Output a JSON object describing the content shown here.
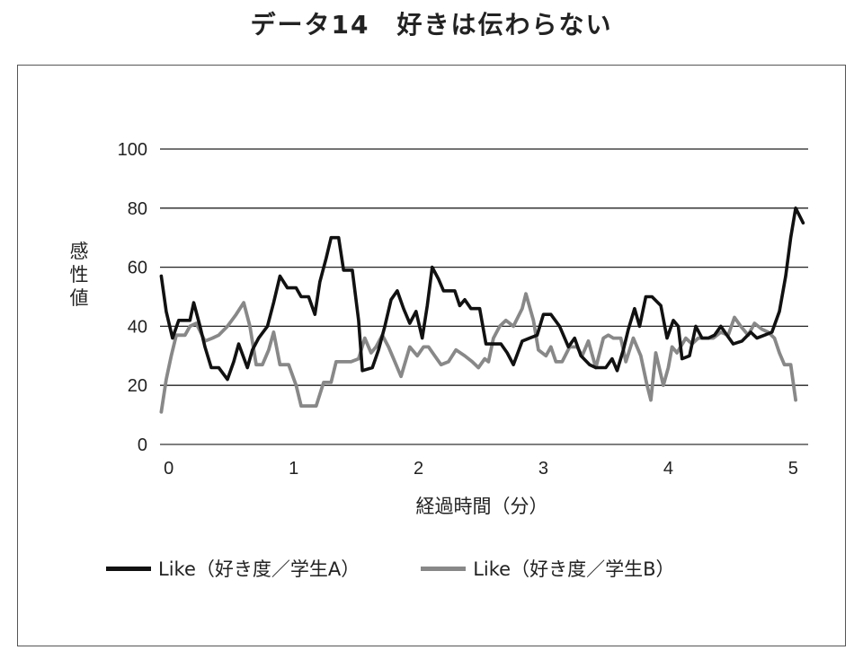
{
  "page_title": "データ14　好きは伝わらない",
  "chart_data": {
    "type": "line",
    "title": "データ14　好きは伝わらない",
    "xlabel": "経過時間（分）",
    "ylabel": "感性値",
    "xlim": [
      -0.07,
      5.12
    ],
    "ylim": [
      0,
      100
    ],
    "x_ticks": [
      0,
      1,
      2,
      3,
      4,
      5
    ],
    "y_ticks": [
      0,
      20,
      40,
      60,
      80,
      100
    ],
    "grid": "horizontal",
    "legend_position": "bottom",
    "series": [
      {
        "name": "Like（好き度／学生A）",
        "color": "#111111",
        "points": [
          [
            -0.06,
            57
          ],
          [
            -0.02,
            45
          ],
          [
            0.03,
            36
          ],
          [
            0.08,
            42
          ],
          [
            0.17,
            42
          ],
          [
            0.2,
            48
          ],
          [
            0.25,
            40
          ],
          [
            0.29,
            33
          ],
          [
            0.34,
            26
          ],
          [
            0.4,
            26
          ],
          [
            0.47,
            22
          ],
          [
            0.52,
            28
          ],
          [
            0.56,
            34
          ],
          [
            0.63,
            26
          ],
          [
            0.67,
            32
          ],
          [
            0.72,
            36
          ],
          [
            0.79,
            40
          ],
          [
            0.84,
            48
          ],
          [
            0.89,
            57
          ],
          [
            0.95,
            53
          ],
          [
            1.02,
            53
          ],
          [
            1.06,
            50
          ],
          [
            1.12,
            50
          ],
          [
            1.17,
            44
          ],
          [
            1.21,
            55
          ],
          [
            1.26,
            63
          ],
          [
            1.3,
            70
          ],
          [
            1.36,
            70
          ],
          [
            1.4,
            59
          ],
          [
            1.47,
            59
          ],
          [
            1.52,
            42
          ],
          [
            1.55,
            25
          ],
          [
            1.63,
            26
          ],
          [
            1.68,
            32
          ],
          [
            1.73,
            40
          ],
          [
            1.78,
            49
          ],
          [
            1.83,
            52
          ],
          [
            1.88,
            46
          ],
          [
            1.93,
            41
          ],
          [
            1.98,
            45
          ],
          [
            2.03,
            36
          ],
          [
            2.07,
            47
          ],
          [
            2.11,
            60
          ],
          [
            2.16,
            56
          ],
          [
            2.2,
            52
          ],
          [
            2.29,
            52
          ],
          [
            2.33,
            47
          ],
          [
            2.37,
            49
          ],
          [
            2.42,
            46
          ],
          [
            2.49,
            46
          ],
          [
            2.54,
            34
          ],
          [
            2.6,
            34
          ],
          [
            2.66,
            34
          ],
          [
            2.71,
            31
          ],
          [
            2.76,
            27
          ],
          [
            2.83,
            35
          ],
          [
            2.89,
            36
          ],
          [
            2.95,
            37
          ],
          [
            3.0,
            44
          ],
          [
            3.06,
            44
          ],
          [
            3.13,
            40
          ],
          [
            3.2,
            33
          ],
          [
            3.25,
            36
          ],
          [
            3.3,
            30
          ],
          [
            3.37,
            27
          ],
          [
            3.42,
            26
          ],
          [
            3.5,
            26
          ],
          [
            3.55,
            29
          ],
          [
            3.59,
            25
          ],
          [
            3.64,
            32
          ],
          [
            3.68,
            39
          ],
          [
            3.73,
            46
          ],
          [
            3.77,
            40
          ],
          [
            3.82,
            50
          ],
          [
            3.87,
            50
          ],
          [
            3.94,
            47
          ],
          [
            3.99,
            36
          ],
          [
            4.04,
            42
          ],
          [
            4.08,
            40
          ],
          [
            4.11,
            29
          ],
          [
            4.17,
            30
          ],
          [
            4.22,
            40
          ],
          [
            4.27,
            36
          ],
          [
            4.32,
            36
          ],
          [
            4.37,
            37
          ],
          [
            4.42,
            40
          ],
          [
            4.47,
            37
          ],
          [
            4.52,
            34
          ],
          [
            4.59,
            35
          ],
          [
            4.66,
            38
          ],
          [
            4.71,
            36
          ],
          [
            4.77,
            37
          ],
          [
            4.83,
            38
          ],
          [
            4.89,
            45
          ],
          [
            4.94,
            57
          ],
          [
            4.98,
            70
          ],
          [
            5.02,
            80
          ],
          [
            5.08,
            75
          ]
        ]
      },
      {
        "name": "Like（好き度／学生B）",
        "color": "#888888",
        "points": [
          [
            -0.06,
            11
          ],
          [
            -0.02,
            22
          ],
          [
            0.02,
            30
          ],
          [
            0.06,
            37
          ],
          [
            0.13,
            37
          ],
          [
            0.17,
            40
          ],
          [
            0.22,
            41
          ],
          [
            0.29,
            35
          ],
          [
            0.35,
            36
          ],
          [
            0.4,
            37
          ],
          [
            0.47,
            40
          ],
          [
            0.54,
            44
          ],
          [
            0.6,
            48
          ],
          [
            0.65,
            40
          ],
          [
            0.7,
            27
          ],
          [
            0.75,
            27
          ],
          [
            0.8,
            32
          ],
          [
            0.84,
            38
          ],
          [
            0.89,
            27
          ],
          [
            0.96,
            27
          ],
          [
            1.02,
            20
          ],
          [
            1.06,
            13
          ],
          [
            1.14,
            13
          ],
          [
            1.18,
            13
          ],
          [
            1.24,
            21
          ],
          [
            1.3,
            21
          ],
          [
            1.34,
            28
          ],
          [
            1.4,
            28
          ],
          [
            1.46,
            28
          ],
          [
            1.52,
            29
          ],
          [
            1.57,
            36
          ],
          [
            1.62,
            31
          ],
          [
            1.66,
            33
          ],
          [
            1.71,
            37
          ],
          [
            1.76,
            33
          ],
          [
            1.81,
            28
          ],
          [
            1.86,
            23
          ],
          [
            1.93,
            33
          ],
          [
            1.99,
            30
          ],
          [
            2.04,
            33
          ],
          [
            2.08,
            33
          ],
          [
            2.13,
            30
          ],
          [
            2.18,
            27
          ],
          [
            2.24,
            28
          ],
          [
            2.3,
            32
          ],
          [
            2.37,
            30
          ],
          [
            2.43,
            28
          ],
          [
            2.48,
            26
          ],
          [
            2.53,
            29
          ],
          [
            2.56,
            28
          ],
          [
            2.6,
            36
          ],
          [
            2.65,
            40
          ],
          [
            2.7,
            42
          ],
          [
            2.76,
            40
          ],
          [
            2.83,
            46
          ],
          [
            2.86,
            51
          ],
          [
            2.92,
            42
          ],
          [
            2.96,
            32
          ],
          [
            3.02,
            30
          ],
          [
            3.06,
            33
          ],
          [
            3.1,
            28
          ],
          [
            3.15,
            28
          ],
          [
            3.21,
            33
          ],
          [
            3.27,
            33
          ],
          [
            3.31,
            30
          ],
          [
            3.36,
            35
          ],
          [
            3.42,
            26
          ],
          [
            3.48,
            36
          ],
          [
            3.52,
            37
          ],
          [
            3.56,
            36
          ],
          [
            3.62,
            36
          ],
          [
            3.66,
            28
          ],
          [
            3.72,
            36
          ],
          [
            3.78,
            30
          ],
          [
            3.83,
            20
          ],
          [
            3.86,
            15
          ],
          [
            3.9,
            31
          ],
          [
            3.96,
            20
          ],
          [
            4.0,
            26
          ],
          [
            4.03,
            33
          ],
          [
            4.07,
            31
          ],
          [
            4.14,
            36
          ],
          [
            4.19,
            34
          ],
          [
            4.24,
            36
          ],
          [
            4.3,
            36
          ],
          [
            4.36,
            36
          ],
          [
            4.42,
            38
          ],
          [
            4.48,
            37
          ],
          [
            4.53,
            43
          ],
          [
            4.58,
            40
          ],
          [
            4.64,
            37
          ],
          [
            4.69,
            41
          ],
          [
            4.75,
            39
          ],
          [
            4.8,
            38
          ],
          [
            4.85,
            36
          ],
          [
            4.89,
            31
          ],
          [
            4.93,
            27
          ],
          [
            4.98,
            27
          ],
          [
            5.02,
            15
          ]
        ]
      }
    ]
  }
}
